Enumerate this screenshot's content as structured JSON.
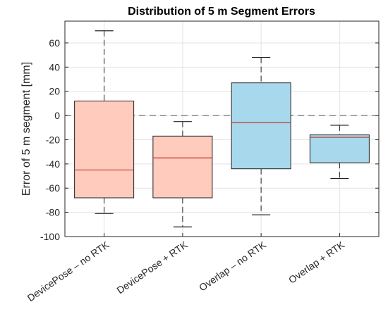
{
  "chart_data": {
    "type": "box",
    "title": "Distribution of 5 m Segment Errors",
    "xlabel": "",
    "ylabel": "Error of 5 m segment [mm]",
    "ylim": [
      -100,
      78
    ],
    "yticks": [
      -100,
      -80,
      -60,
      -40,
      -20,
      0,
      20,
      40,
      60
    ],
    "grid": true,
    "reference_line": {
      "y": 0,
      "style": "dashed"
    },
    "categories": [
      "DevicePose – no RTK",
      "DevicePose + RTK",
      "Overlap – no RTK",
      "Overlap + RTK"
    ],
    "boxes": [
      {
        "whisker_low": -81,
        "q1": -68,
        "median": -45,
        "q3": 12,
        "whisker_high": 70,
        "fill": "#ffcbbd"
      },
      {
        "whisker_low": -92,
        "q1": -68,
        "median": -35,
        "q3": -17,
        "whisker_high": -5,
        "fill": "#ffcbbd"
      },
      {
        "whisker_low": -82,
        "q1": -44,
        "median": -6,
        "q3": 27,
        "whisker_high": 48,
        "fill": "#a8d8ec"
      },
      {
        "whisker_low": -52,
        "q1": -39,
        "median": -18,
        "q3": -16,
        "whisker_high": -8,
        "fill": "#a8d8ec"
      }
    ],
    "colors": {
      "median": "#c0392b",
      "whisker": "#222222",
      "box_edge": "#222222",
      "grid": "#e3e3e3",
      "axis": "#262626"
    }
  }
}
